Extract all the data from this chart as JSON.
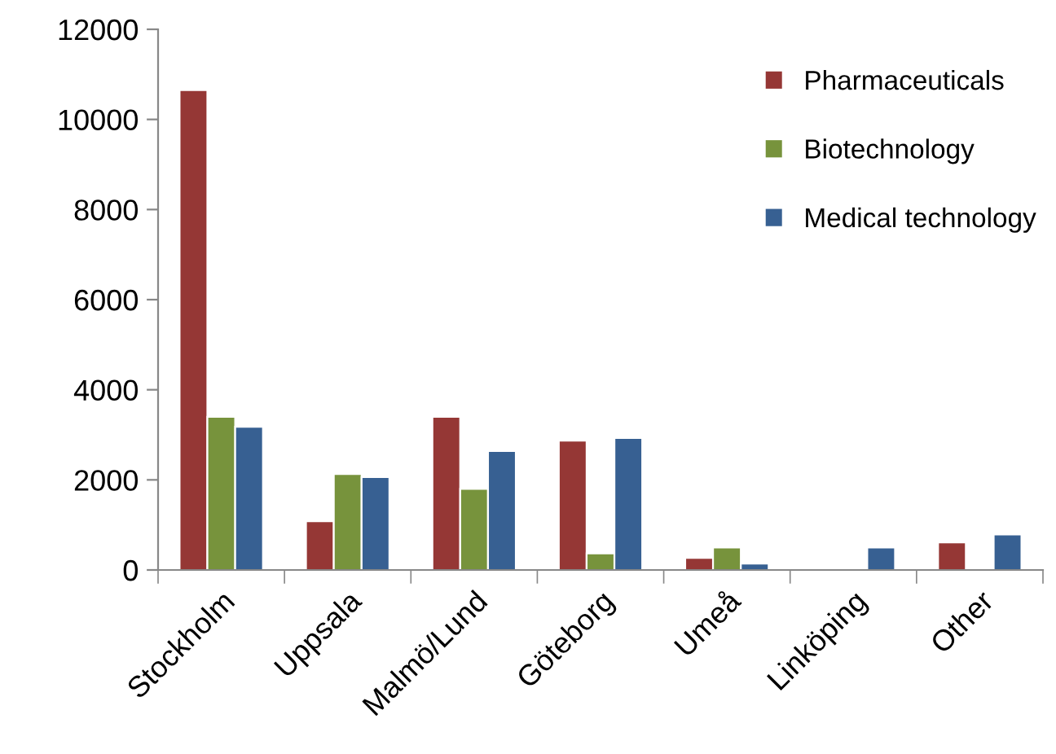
{
  "chart_data": {
    "type": "bar",
    "categories": [
      "Stockholm",
      "Uppsala",
      "Malmö/Lund",
      "Göteborg",
      "Umeå",
      "Linköping",
      "Other"
    ],
    "series": [
      {
        "name": "Pharmaceuticals",
        "color": "#953735",
        "values": [
          10650,
          1080,
          3400,
          2870,
          270,
          null,
          610
        ]
      },
      {
        "name": "Biotechnology",
        "color": "#77933c",
        "values": [
          3400,
          2130,
          1800,
          370,
          500,
          null,
          null
        ]
      },
      {
        "name": "Medical technology",
        "color": "#376092",
        "values": [
          3180,
          2060,
          2640,
          2930,
          140,
          500,
          790
        ]
      }
    ],
    "ylim": [
      0,
      12000
    ],
    "yticks": [
      0,
      2000,
      4000,
      6000,
      8000,
      10000,
      12000
    ],
    "grid": false,
    "legend": "top right"
  }
}
